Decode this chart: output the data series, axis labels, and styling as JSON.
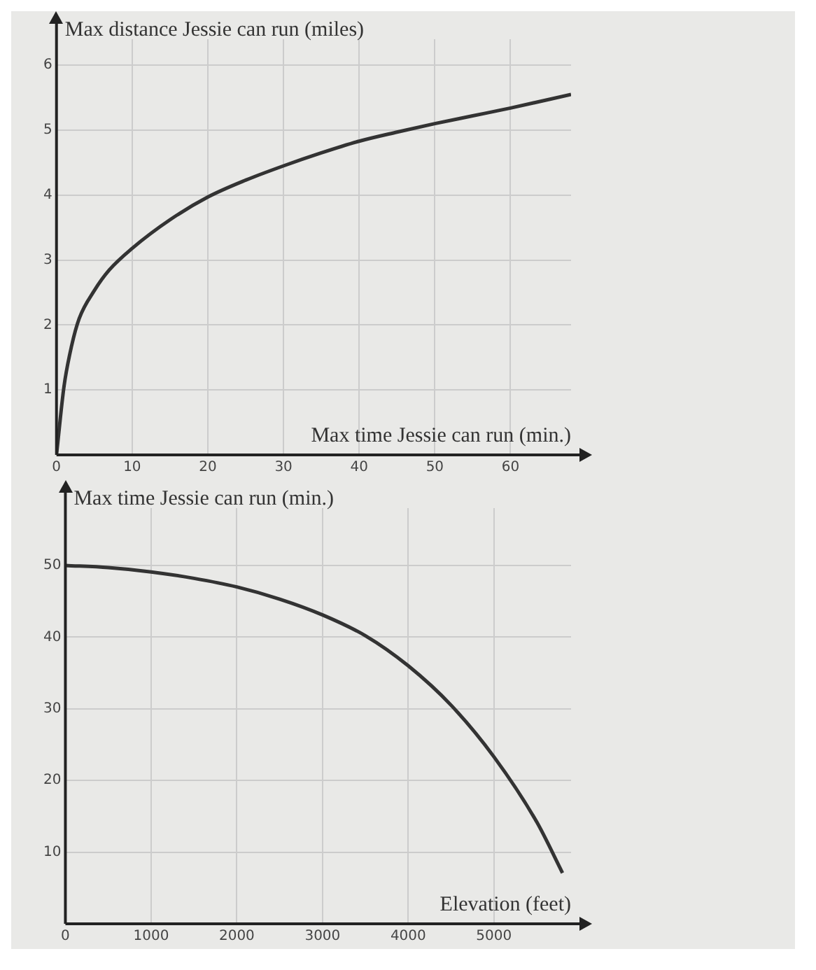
{
  "chart_data": [
    {
      "type": "line",
      "xlabel": "Max time Jessie can run (min.)",
      "ylabel": "Max distance Jessie can run (miles)",
      "x": [
        0,
        1,
        2,
        3,
        5,
        7,
        10,
        15,
        20,
        25,
        30,
        35,
        40,
        45,
        50,
        55,
        60,
        68
      ],
      "series": [
        {
          "color": "#333333",
          "values": [
            0,
            1.06,
            1.68,
            2.1,
            2.53,
            2.85,
            3.18,
            3.62,
            3.97,
            4.23,
            4.45,
            4.65,
            4.83,
            4.97,
            5.1,
            5.22,
            5.34,
            5.55
          ]
        }
      ],
      "xlim": [
        0,
        68
      ],
      "ylim": [
        0,
        6.4
      ],
      "xticks": [
        0,
        10,
        20,
        30,
        40,
        50,
        60
      ],
      "yticks": [
        1,
        2,
        3,
        4,
        5,
        6
      ],
      "grid": true,
      "marker": "none",
      "line_style": "solid",
      "legend": false
    },
    {
      "type": "line",
      "xlabel": "Elevation (feet)",
      "ylabel": "Max time Jessie can run (min.)",
      "x": [
        0,
        500,
        1000,
        1500,
        2000,
        2500,
        3000,
        3500,
        4000,
        4500,
        5000,
        5500,
        5800
      ],
      "series": [
        {
          "color": "#333333",
          "values": [
            50,
            49.7,
            49.1,
            48.2,
            47,
            45.3,
            43.1,
            40.2,
            36,
            30.5,
            23.3,
            14.2,
            7.1
          ]
        }
      ],
      "xlim": [
        0,
        5900
      ],
      "ylim": [
        0,
        58
      ],
      "xticks": [
        0,
        1000,
        2000,
        3000,
        4000,
        5000
      ],
      "yticks": [
        10,
        20,
        30,
        40,
        50
      ],
      "grid": true,
      "marker": "none",
      "line_style": "solid",
      "legend": false
    }
  ]
}
